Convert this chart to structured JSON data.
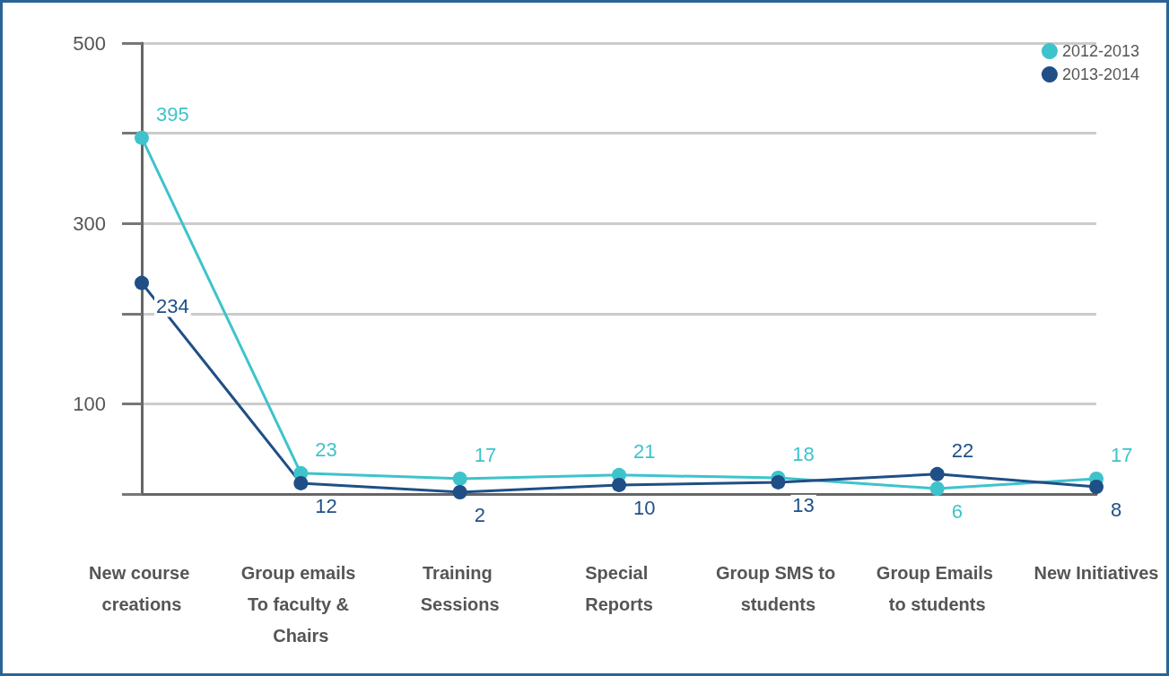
{
  "chart_data": {
    "type": "line",
    "categories": [
      "New course creations",
      "Group emails To faculty & Chairs",
      "Training Sessions",
      "Special Reports",
      "Group SMS to students",
      "Group Emails to students",
      "New Initiatives"
    ],
    "series": [
      {
        "name": "2012-2013",
        "color": "#3ec3cc",
        "values": [
          395,
          23,
          17,
          21,
          18,
          6,
          17
        ]
      },
      {
        "name": "2013-2014",
        "color": "#1f4f86",
        "values": [
          234,
          12,
          2,
          10,
          13,
          22,
          8
        ]
      }
    ],
    "ylim": [
      0,
      500
    ],
    "yticks": [
      {
        "value": 0,
        "label": null
      },
      {
        "value": 100,
        "label": "100"
      },
      {
        "value": 200,
        "label": null
      },
      {
        "value": 300,
        "label": "300"
      },
      {
        "value": 400,
        "label": null
      },
      {
        "value": 500,
        "label": "500"
      }
    ],
    "grid": "y",
    "legend": "top right",
    "data_labels": true,
    "marker": "circle",
    "line_style": "solid"
  }
}
